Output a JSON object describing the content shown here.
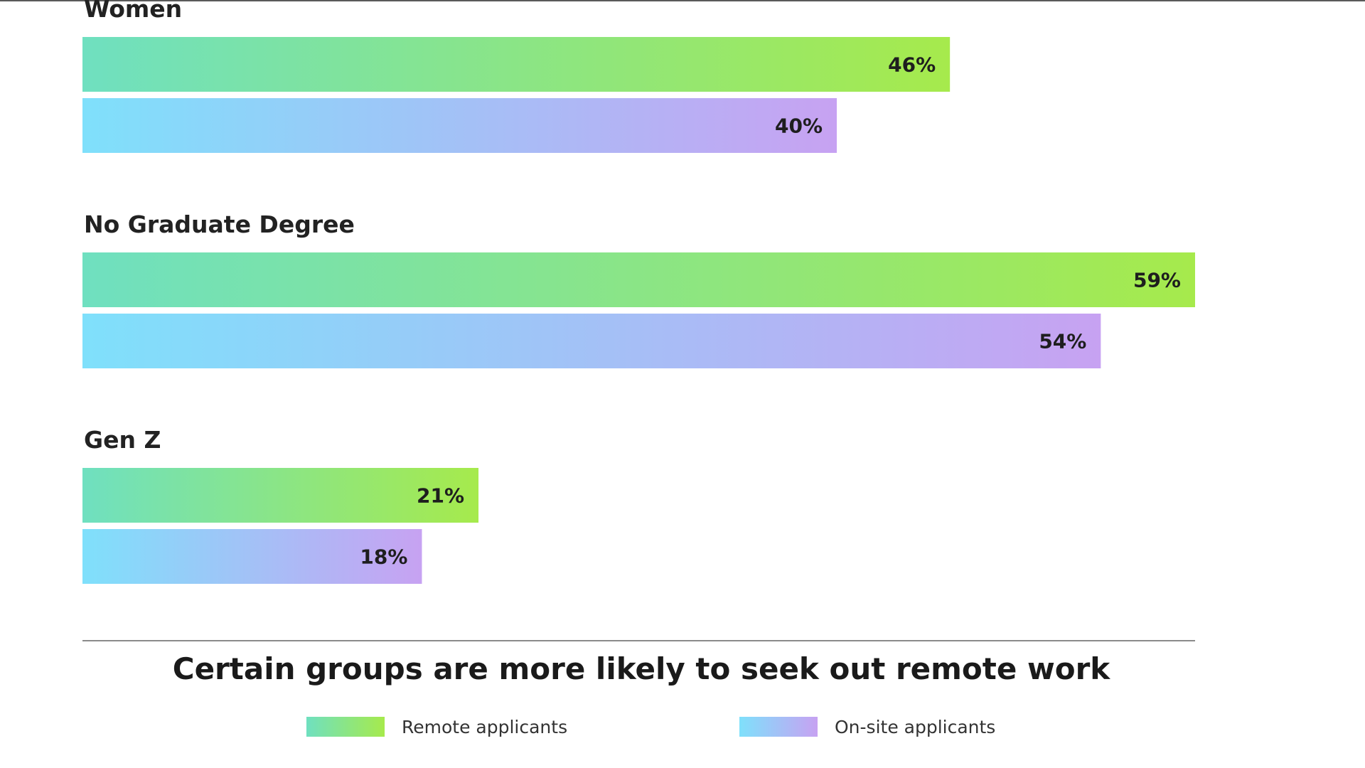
{
  "chart_data": {
    "type": "bar",
    "orientation": "horizontal",
    "title": "Certain groups are more likely to seek out remote work",
    "categories": [
      "Women",
      "No Graduate Degree",
      "Gen Z"
    ],
    "series": [
      {
        "name": "Remote applicants",
        "values": [
          46,
          59,
          21
        ],
        "labels": [
          "46%",
          "59%",
          "21%"
        ]
      },
      {
        "name": "On-site applicants",
        "values": [
          40,
          54,
          18
        ],
        "labels": [
          "40%",
          "54%",
          "18%"
        ]
      }
    ],
    "value_unit": "%",
    "xlim": [
      0,
      59
    ],
    "grid": false,
    "legend_position": "bottom"
  },
  "colors": {
    "remote_start": "#6fe0c0",
    "remote_end": "#a6ea4c",
    "onsite_start": "#7fe0fb",
    "onsite_end": "#c7a2f2",
    "divider": "#8a8a8a"
  }
}
